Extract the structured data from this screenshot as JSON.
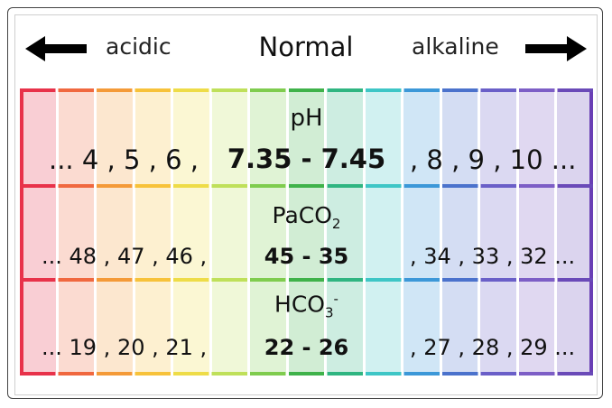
{
  "header": {
    "left_label": "acidic",
    "title": "Normal",
    "right_label": "alkaline"
  },
  "colors": {
    "stripes": [
      "#e8324a",
      "#f0683f",
      "#f49a38",
      "#f7c23a",
      "#eedc48",
      "#bfe05a",
      "#7fcc4e",
      "#3fb24a",
      "#2fb581",
      "#3ec6c6",
      "#3c98d8",
      "#4b72cc",
      "#6a5fc8",
      "#7d5ec6",
      "#6a4ab8"
    ],
    "outline": "#6a3fb5"
  },
  "rows": [
    {
      "name": "ph",
      "label": "pH",
      "acidic": "... 4 , 5 , 6 ,",
      "normal": "7.35 - 7.45",
      "alkaline": ", 8 , 9 , 10 ..."
    },
    {
      "name": "paco2",
      "label": "PaCO",
      "label_sub": "2",
      "acidic": "... 48 , 47 , 46 ,",
      "normal": "45 - 35",
      "alkaline": ", 34 , 33 , 32 ..."
    },
    {
      "name": "hco3",
      "label": "HCO",
      "label_sub": "3",
      "label_sup": "-",
      "acidic": "... 19 , 20 , 21 ,",
      "normal": "22 - 26",
      "alkaline": ", 27 , 28 , 29 ..."
    }
  ]
}
